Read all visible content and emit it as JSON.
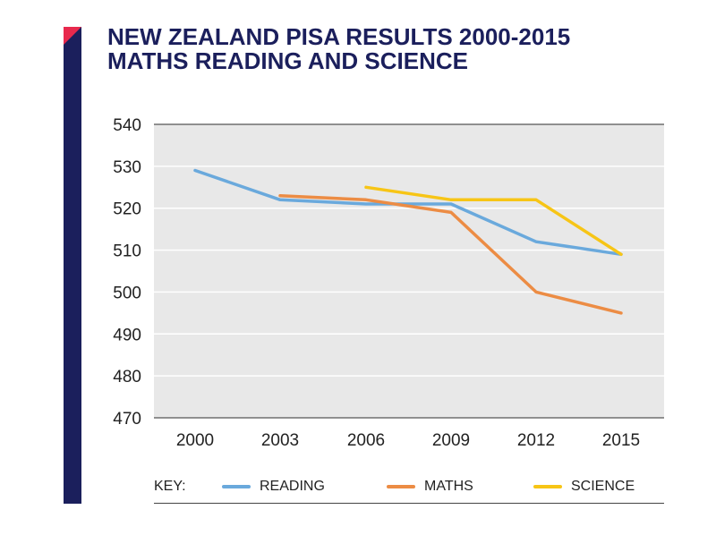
{
  "header": {
    "title_line1": "NEW ZEALAND PISA RESULTS 2000-2015",
    "title_line2": "MATHS READING AND SCIENCE"
  },
  "colors": {
    "accent_bar": "#1b1f5c",
    "accent_corner": "#e8294d",
    "plot_bg": "#e8e8e8"
  },
  "legend": {
    "key_label": "KEY:",
    "items": [
      {
        "label": "READING",
        "color": "#6aa9dc"
      },
      {
        "label": "MATHS",
        "color": "#ec8c44"
      },
      {
        "label": "SCIENCE",
        "color": "#f7c516"
      }
    ]
  },
  "chart_data": {
    "type": "line",
    "title": "NEW ZEALAND PISA RESULTS 2000-2015 MATHS READING AND SCIENCE",
    "x": [
      "2000",
      "2003",
      "2006",
      "2009",
      "2012",
      "2015"
    ],
    "ylim": [
      470,
      540
    ],
    "yticks": [
      540,
      530,
      520,
      510,
      500,
      490,
      480,
      470
    ],
    "grid": true,
    "legend_position": "bottom",
    "series": [
      {
        "name": "READING",
        "color": "#6aa9dc",
        "values": [
          529,
          522,
          521,
          521,
          512,
          509
        ]
      },
      {
        "name": "MATHS",
        "color": "#ec8c44",
        "values": [
          null,
          523,
          522,
          519,
          500,
          495
        ]
      },
      {
        "name": "SCIENCE",
        "color": "#f7c516",
        "values": [
          null,
          null,
          525,
          522,
          522,
          509
        ]
      }
    ]
  }
}
